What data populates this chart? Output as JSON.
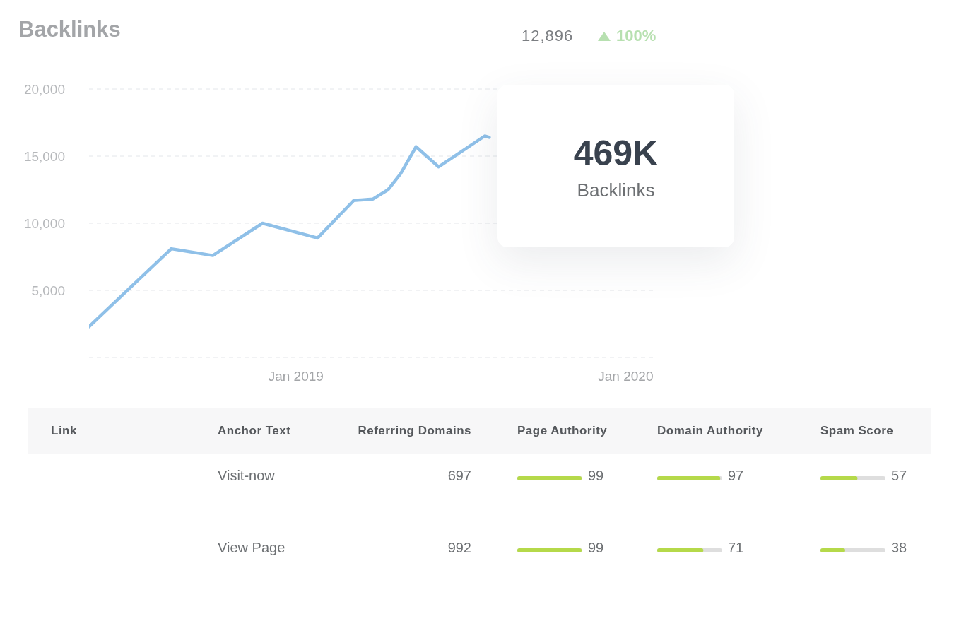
{
  "chart_data": [
    {
      "type": "line",
      "title": "Backlinks",
      "annotations": [
        "12,896",
        "100%",
        "469K",
        "Backlinks"
      ],
      "x": [
        "2018-05-17",
        "2018-08-16",
        "2018-10-01",
        "2018-11-25",
        "2019-01-25",
        "2019-03-06",
        "2019-03-27",
        "2019-04-13",
        "2019-04-27",
        "2019-05-14",
        "2019-06-08",
        "2019-07-29",
        "2019-08-03"
      ],
      "series": [
        {
          "color": "#8fc0e8",
          "values": [
            2300,
            8100,
            7600,
            10000,
            8900,
            11700,
            11800,
            12500,
            13700,
            15700,
            14200,
            16500,
            16400
          ]
        }
      ],
      "xlim": [
        "2018-05-17",
        "2020-02-01"
      ],
      "xticks": [
        {
          "value": "2019-01-01",
          "label": "Jan 2019"
        },
        {
          "value": "2020-01-01",
          "label": "Jan 2020"
        }
      ],
      "ylim": [
        0,
        20000
      ],
      "yticks": [
        {
          "value": 0,
          "label": null
        },
        {
          "value": 5000,
          "label": "5,000"
        },
        {
          "value": 10000,
          "label": "10,000"
        },
        {
          "value": 15000,
          "label": "15,000"
        },
        {
          "value": 20000,
          "label": "20,000"
        }
      ],
      "grid": "y",
      "marker": "none",
      "line_style": "solid"
    },
    {
      "type": "other",
      "categories": [
        "Link",
        "Anchor Text",
        "Referring Domains",
        "Page Authority",
        "Domain Authority",
        "Spam Score"
      ],
      "cells": [
        [
          null,
          "Visit-now",
          "697",
          "99",
          "97",
          "57"
        ],
        [
          null,
          "View Page",
          "992",
          "99",
          "71",
          "38"
        ]
      ]
    }
  ]
}
